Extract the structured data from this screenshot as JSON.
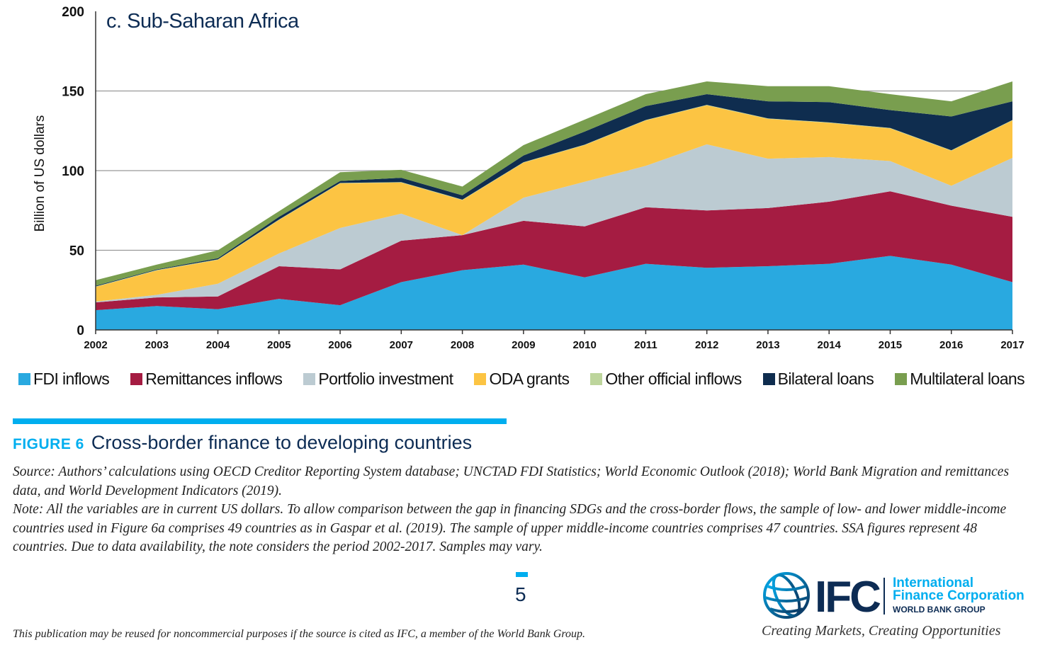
{
  "chart_data": {
    "type": "area",
    "stacked": true,
    "title": "c. Sub-Saharan Africa",
    "xlabel": "",
    "ylabel": "Billion of US dollars",
    "ylim": [
      0,
      200
    ],
    "yticks": [
      0,
      50,
      100,
      150,
      200
    ],
    "grid": "horizontal",
    "legend_position": "bottom",
    "categories": [
      "2002",
      "2003",
      "2004",
      "2005",
      "2006",
      "2007",
      "2008",
      "2009",
      "2010",
      "2011",
      "2012",
      "2013",
      "2014",
      "2015",
      "2016",
      "2017"
    ],
    "series": [
      {
        "name": "FDI inflows",
        "color": "#29a9e0",
        "values": [
          12.4,
          15,
          13,
          19.5,
          15.5,
          30,
          37.5,
          41,
          33,
          41.5,
          39,
          40,
          41.5,
          46.5,
          41,
          30
        ]
      },
      {
        "name": "Remittances inflows",
        "color": "#a51c42",
        "values": [
          4.9,
          5.4,
          8,
          20.5,
          22.5,
          26,
          22,
          27.5,
          32,
          35.5,
          36,
          36.5,
          39,
          40.5,
          37,
          41
        ]
      },
      {
        "name": "Portfolio investment",
        "color": "#bccbd2",
        "values": [
          0.5,
          1.6,
          8,
          8,
          26,
          17,
          0,
          14.5,
          28,
          26,
          41.5,
          31,
          28,
          19,
          12.5,
          37
        ]
      },
      {
        "name": "ODA grants",
        "color": "#fcc443",
        "values": [
          9.2,
          15.3,
          15,
          21,
          28,
          19.5,
          22,
          22,
          23,
          28.5,
          24.5,
          25,
          21.5,
          20.5,
          22,
          23.5
        ]
      },
      {
        "name": "Other official inflows",
        "color": "#bdd59c",
        "values": [
          0.3,
          0.3,
          0.3,
          0.3,
          0.3,
          0.3,
          0.3,
          0.3,
          0.3,
          0.3,
          0.3,
          0.3,
          0.3,
          0.3,
          0.3,
          0.3
        ]
      },
      {
        "name": "Bilateral loans",
        "color": "#0f2d4f",
        "values": [
          0.4,
          0.4,
          0.7,
          1.7,
          1.2,
          2.7,
          2.7,
          4.2,
          8.2,
          8.7,
          6.7,
          10.7,
          12.7,
          11.2,
          21.2,
          11.7
        ]
      },
      {
        "name": "Multilateral loans",
        "color": "#799e4f",
        "values": [
          3.5,
          3,
          5,
          3.5,
          5.5,
          5,
          5.5,
          6.5,
          7.5,
          7.5,
          8,
          9.5,
          10,
          10,
          9.5,
          12.5
        ]
      }
    ]
  },
  "figure": {
    "label": "FIGURE 6",
    "title": "Cross-border finance to developing countries",
    "source": "Source: Authors’ calculations using OECD Creditor Reporting System database; UNCTAD FDI Statistics; World Economic Outlook (2018); World Bank Migration and remittances data, and World Development Indicators (2019).",
    "note": "Note: All the variables are in current US dollars. To allow comparison between the gap in financing SDGs and the cross-border flows, the sample of low- and lower middle-income countries used in Figure 6a comprises 49 countries as in Gaspar et al. (2019). The sample of upper middle-income countries comprises 47 countries. SSA figures represent 48 countries. Due to data availability, the note considers the period 2002-2017. Samples may vary."
  },
  "page": {
    "number": "5",
    "footer": "This publication may be reused for noncommercial purposes if the source is cited as IFC, a member of the World Bank Group."
  },
  "logo": {
    "mark": "IFC",
    "line1": "International",
    "line2": "Finance Corporation",
    "line3": "WORLD BANK GROUP",
    "tagline": "Creating Markets, Creating Opportunities",
    "colors": {
      "navy": "#0d2c54",
      "cyan": "#00aeef"
    }
  }
}
